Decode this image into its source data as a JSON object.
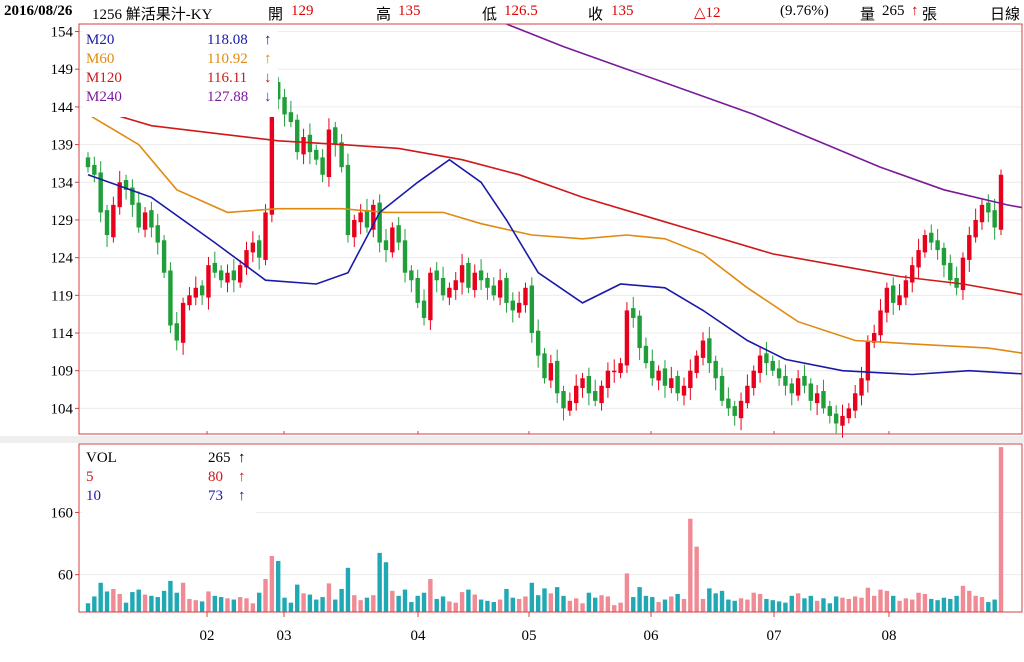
{
  "header": {
    "date": "2016/08/26",
    "stock": "1256 鮮活果汁-KY",
    "open_label": "開",
    "open": "129",
    "high_label": "高",
    "high": "135",
    "low_label": "低",
    "low": "126.5",
    "close_label": "收",
    "close": "135",
    "change": "△12",
    "change_pct": "(9.76%)",
    "volume_label": "量",
    "volume": "265",
    "volume_unit": "張",
    "period": "日線"
  },
  "ma_legend": [
    {
      "name": "M20",
      "value": "118.08",
      "arrow": "↑",
      "color": "#1a1aa8"
    },
    {
      "name": "M60",
      "value": "110.92",
      "arrow": "↑",
      "color": "#e08a10"
    },
    {
      "name": "M120",
      "value": "116.11",
      "arrow": "↓",
      "color": "#d01818"
    },
    {
      "name": "M240",
      "value": "127.88",
      "arrow": "↓",
      "color": "#7a1a9a"
    }
  ],
  "vol_legend": [
    {
      "name": "VOL",
      "value": "265",
      "arrow": "↑",
      "name_color": "#000",
      "color": "#000"
    },
    {
      "name": "5",
      "value": "80",
      "arrow": "↑",
      "name_color": "#d01818",
      "color": "#d01818"
    },
    {
      "name": "10",
      "value": "73",
      "arrow": "↑",
      "name_color": "#1a1aa8",
      "color": "#1a1aa8"
    }
  ],
  "colors": {
    "up": "#e8001c",
    "down": "#1f9e3a",
    "vol_up": "#f08a94",
    "vol_down": "#20a8b4",
    "axis": "#d04040"
  },
  "chart_data": {
    "type": "candlestick",
    "x_ticks": [
      "02",
      "03",
      "04",
      "05",
      "06",
      "07",
      "08"
    ],
    "price_axis": {
      "ticks": [
        104,
        109,
        114,
        119,
        124,
        129,
        134,
        139,
        144,
        149,
        154
      ],
      "range": [
        100.6,
        155
      ]
    },
    "volume_axis": {
      "ticks": [
        60,
        160
      ],
      "range": [
        0,
        270
      ]
    },
    "ma20_keys": [
      [
        0,
        135
      ],
      [
        10,
        132
      ],
      [
        20,
        126
      ],
      [
        28,
        121
      ],
      [
        36,
        120.5
      ],
      [
        41,
        122
      ],
      [
        46,
        130
      ],
      [
        52,
        134
      ],
      [
        57,
        137
      ],
      [
        62,
        134
      ],
      [
        66,
        129
      ],
      [
        71,
        122
      ],
      [
        78,
        118
      ],
      [
        84,
        120.5
      ],
      [
        91,
        120
      ],
      [
        97,
        117
      ],
      [
        104,
        113
      ],
      [
        110,
        110.5
      ],
      [
        119,
        109
      ],
      [
        130,
        108.5
      ],
      [
        139,
        109
      ],
      [
        149,
        108.5
      ],
      [
        154,
        107
      ],
      [
        161,
        106.5
      ],
      [
        167,
        105
      ],
      [
        172,
        104.5
      ],
      [
        176,
        106
      ],
      [
        182,
        109
      ],
      [
        189,
        114
      ],
      [
        193,
        118
      ]
    ],
    "ma60_keys": [
      [
        0,
        143
      ],
      [
        8,
        139
      ],
      [
        14,
        133
      ],
      [
        22,
        130
      ],
      [
        30,
        130.5
      ],
      [
        40,
        130.5
      ],
      [
        47,
        130
      ],
      [
        56,
        130
      ],
      [
        62,
        128.5
      ],
      [
        70,
        127
      ],
      [
        78,
        126.5
      ],
      [
        85,
        127
      ],
      [
        91,
        126.5
      ],
      [
        97,
        124.5
      ],
      [
        104,
        120
      ],
      [
        112,
        115.5
      ],
      [
        121,
        113
      ],
      [
        131,
        112.5
      ],
      [
        142,
        112
      ],
      [
        150,
        111
      ],
      [
        158,
        109
      ],
      [
        166,
        108
      ],
      [
        172,
        108
      ],
      [
        180,
        109.5
      ],
      [
        186,
        110
      ],
      [
        193,
        111
      ]
    ],
    "ma120_keys": [
      [
        0,
        144
      ],
      [
        10,
        141.5
      ],
      [
        20,
        140.5
      ],
      [
        30,
        139.5
      ],
      [
        40,
        139
      ],
      [
        49,
        138.5
      ],
      [
        59,
        137
      ],
      [
        68,
        135
      ],
      [
        78,
        132
      ],
      [
        88,
        129.5
      ],
      [
        98,
        127
      ],
      [
        108,
        124.5
      ],
      [
        118,
        123
      ],
      [
        128,
        121.5
      ],
      [
        138,
        120.5
      ],
      [
        148,
        119
      ],
      [
        158,
        118
      ],
      [
        168,
        117.5
      ],
      [
        178,
        117
      ],
      [
        186,
        116.5
      ],
      [
        193,
        116
      ]
    ],
    "ma240_keys": [
      [
        66,
        155
      ],
      [
        75,
        152
      ],
      [
        85,
        149
      ],
      [
        95,
        146
      ],
      [
        105,
        143
      ],
      [
        115,
        139.5
      ],
      [
        125,
        136
      ],
      [
        135,
        133
      ],
      [
        145,
        131
      ],
      [
        155,
        129.5
      ],
      [
        165,
        128.5
      ],
      [
        175,
        128
      ],
      [
        185,
        127.8
      ],
      [
        193,
        128
      ]
    ],
    "closes": [
      136,
      135,
      130,
      127,
      131,
      134,
      133,
      131,
      128,
      130,
      128,
      126,
      122,
      115,
      113,
      118,
      119,
      120,
      119,
      123,
      122,
      121,
      122,
      121,
      123,
      125,
      126,
      124,
      130,
      147,
      145,
      143,
      142,
      138,
      140,
      138,
      137,
      135,
      141,
      139,
      136,
      127,
      129,
      130,
      128,
      131,
      126,
      125,
      128,
      126,
      122,
      121,
      118,
      116,
      122,
      121,
      119,
      120,
      121,
      123,
      120,
      122,
      121,
      120,
      119,
      121,
      118,
      117,
      118,
      120,
      114,
      111,
      108,
      110,
      106,
      104,
      105,
      107,
      108,
      106,
      105,
      107,
      109,
      109,
      110,
      117,
      116,
      112,
      110,
      108,
      109,
      107,
      108,
      106,
      107,
      109,
      111,
      113,
      110,
      108,
      105,
      104,
      103,
      105,
      107,
      109,
      111,
      110,
      109,
      108,
      107,
      106,
      108,
      107,
      105,
      106,
      104,
      103,
      102,
      103,
      104,
      106,
      108,
      113,
      114,
      117,
      120,
      118,
      119,
      121,
      123,
      125,
      127,
      126,
      125,
      123,
      121,
      120,
      124,
      127,
      129,
      131,
      130,
      128,
      135
    ]
  }
}
